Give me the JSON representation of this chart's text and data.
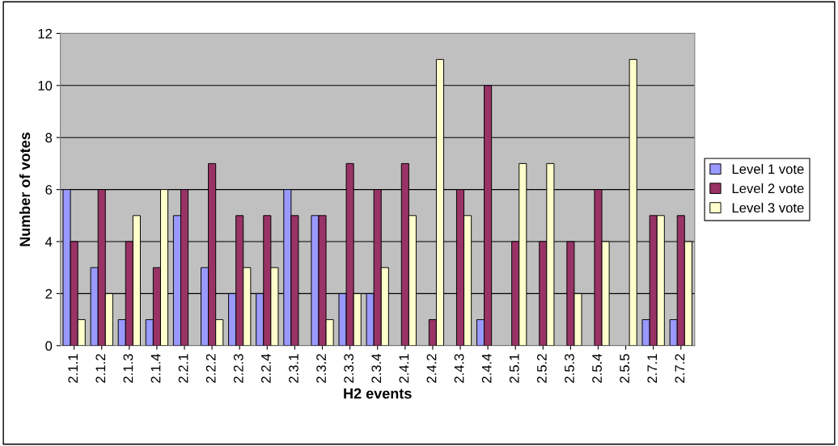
{
  "chart_data": {
    "type": "bar",
    "xlabel": "H2 events",
    "ylabel": "Number of votes",
    "categories": [
      "2.1.1",
      "2.1.2",
      "2.1.3",
      "2.1.4",
      "2.2.1",
      "2.2.2",
      "2.2.3",
      "2.2.4",
      "2.3.1",
      "2.3.2",
      "2.3.3",
      "2.3.4",
      "2.4.1",
      "2.4.2",
      "2.4.3",
      "2.4.4",
      "2.5.1",
      "2.5.2",
      "2.5.3",
      "2.5.4",
      "2.5.5",
      "2.7.1",
      "2.7.2"
    ],
    "series": [
      {
        "name": "Level 1 vote",
        "color": "#9999ff",
        "values": [
          6,
          3,
          1,
          1,
          5,
          3,
          2,
          2,
          6,
          5,
          2,
          2,
          0,
          0,
          0,
          1,
          0,
          0,
          0,
          0,
          0,
          1,
          1
        ]
      },
      {
        "name": "Level 2 vote",
        "color": "#993366",
        "values": [
          4,
          6,
          4,
          3,
          6,
          7,
          5,
          5,
          5,
          5,
          7,
          6,
          7,
          1,
          6,
          10,
          4,
          4,
          4,
          6,
          0,
          5,
          5
        ]
      },
      {
        "name": "Level 3 vote",
        "color": "#ffffcc",
        "values": [
          1,
          2,
          5,
          6,
          0,
          1,
          3,
          3,
          0,
          1,
          2,
          3,
          5,
          11,
          5,
          0,
          7,
          7,
          2,
          4,
          11,
          5,
          4
        ]
      }
    ],
    "ylim": [
      0,
      12
    ],
    "yticks": [
      0,
      2,
      4,
      6,
      8,
      10,
      12
    ],
    "grid": "y",
    "legend": "right"
  }
}
